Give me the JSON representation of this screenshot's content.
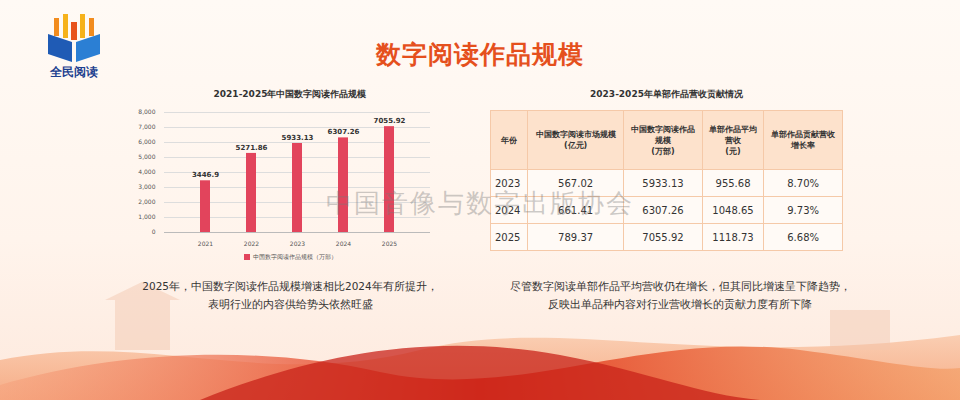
{
  "header": {
    "title": "数字阅读作品规模",
    "logo_text": "全民阅读"
  },
  "watermark": "中国音像与数字出版协会",
  "chart_data": {
    "type": "bar",
    "title": "2021-2025年中国数字阅读作品规模",
    "categories": [
      "2021",
      "2022",
      "2023",
      "2024",
      "2025"
    ],
    "series": [
      {
        "name": "中国数字阅读作品规模（万部）",
        "color": "#e2445c",
        "values": [
          3446.9,
          5271.86,
          5933.13,
          6307.26,
          7055.92
        ]
      }
    ],
    "ylim": [
      0,
      8000
    ],
    "yticks": [
      0,
      1000,
      2000,
      3000,
      4000,
      5000,
      6000,
      7000,
      8000
    ],
    "grid": true,
    "data_labels": true,
    "legend": "bottom"
  },
  "chart_caption": [
    "2025年，中国数字阅读作品规模增速相比2024年有所提升，",
    "表明行业的内容供给势头依然旺盛"
  ],
  "table": {
    "title": "2023-2025年单部作品营收贡献情况",
    "header": [
      [
        "年份"
      ],
      [
        "中国数字阅读市场规模",
        "(亿元)"
      ],
      [
        "中国数字阅读作品",
        "规模",
        "(万部)"
      ],
      [
        "单部作品平均",
        "营收",
        "(元)"
      ],
      [
        "单部作品贡献营收",
        "增长率"
      ]
    ],
    "rows": [
      [
        "2023",
        "567.02",
        "5933.13",
        "955.68",
        "8.70%"
      ],
      [
        "2024",
        "661.41",
        "6307.26",
        "1048.65",
        "9.73%"
      ],
      [
        "2025",
        "789.37",
        "7055.92",
        "1118.73",
        "6.68%"
      ]
    ]
  },
  "table_caption": [
    "尽管数字阅读单部作品平均营收仍在增长，但其同比增速呈下降趋势，",
    "反映出单品种内容对行业营收增长的贡献力度有所下降"
  ]
}
